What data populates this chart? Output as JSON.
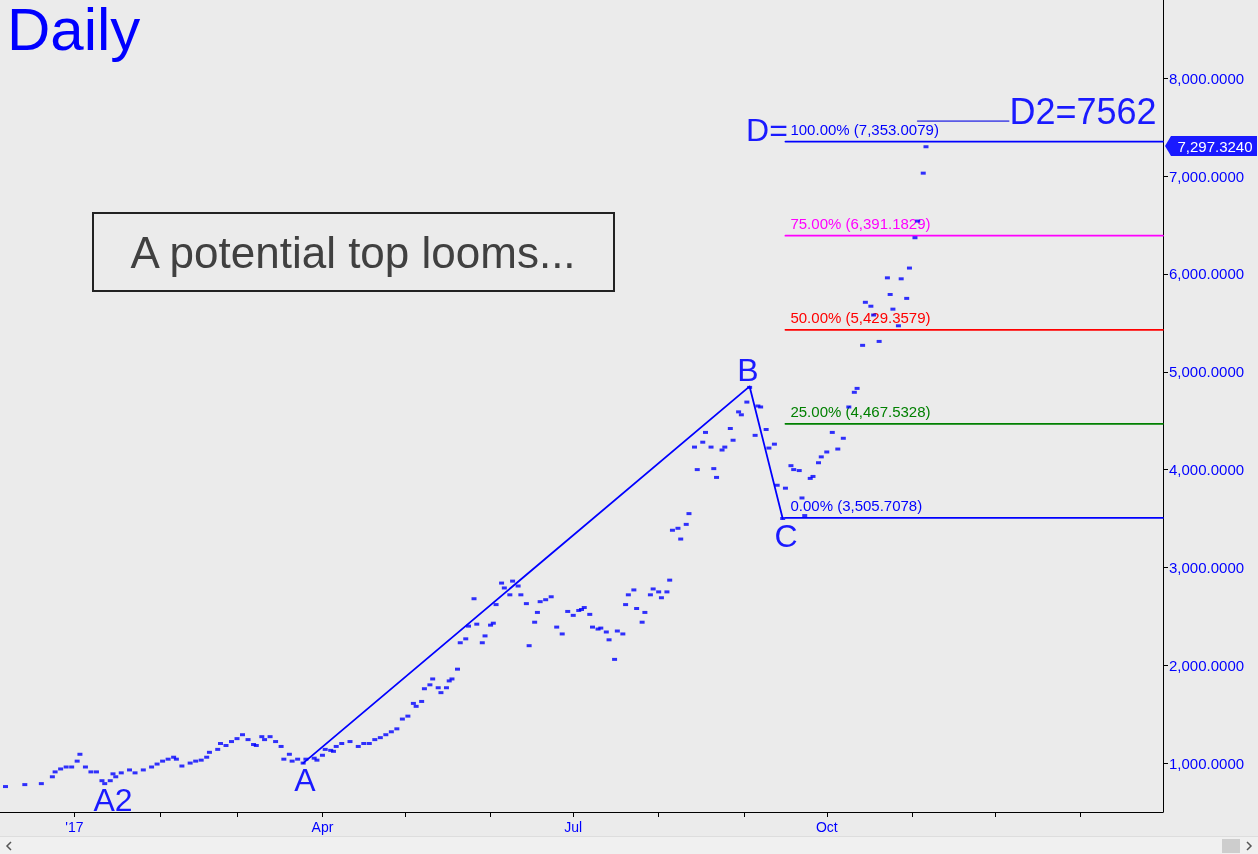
{
  "chart_data": {
    "type": "scatter",
    "title": "Daily",
    "marker": "square",
    "xlim": [
      "2016-12-05",
      "2018-01-31"
    ],
    "xticks": [
      {
        "value": "2017-01-01",
        "label": "'17"
      },
      {
        "value": "2017-02-01",
        "label": null
      },
      {
        "value": "2017-03-01",
        "label": null
      },
      {
        "value": "2017-04-01",
        "label": "Apr"
      },
      {
        "value": "2017-05-01",
        "label": null
      },
      {
        "value": "2017-06-01",
        "label": null
      },
      {
        "value": "2017-07-01",
        "label": "Jul"
      },
      {
        "value": "2017-08-01",
        "label": null
      },
      {
        "value": "2017-09-01",
        "label": null
      },
      {
        "value": "2017-10-01",
        "label": "Oct"
      },
      {
        "value": "2017-11-01",
        "label": null
      },
      {
        "value": "2017-12-01",
        "label": null
      },
      {
        "value": "2018-01-01",
        "label": null
      }
    ],
    "ylim": [
      500,
      8800
    ],
    "yticks": [
      {
        "value": 1000,
        "label": "1,000.0000"
      },
      {
        "value": 2000,
        "label": "2,000.0000"
      },
      {
        "value": 3000,
        "label": "3,000.0000"
      },
      {
        "value": 4000,
        "label": "4,000.0000"
      },
      {
        "value": 5000,
        "label": "5,000.0000"
      },
      {
        "value": 6000,
        "label": "6,000.0000"
      },
      {
        "value": 7000,
        "label": "7,000.0000"
      },
      {
        "value": 8000,
        "label": "8,000.0000"
      }
    ],
    "series": [
      {
        "color": "#0000ff",
        "x": [
          "2016-12-07",
          "2016-12-14",
          "2016-12-20",
          "2016-12-24",
          "2016-12-25",
          "2016-12-27",
          "2016-12-29",
          "2016-12-31",
          "2017-01-02",
          "2017-01-03",
          "2017-01-05",
          "2017-01-07",
          "2017-01-09",
          "2017-01-11",
          "2017-01-12",
          "2017-01-14",
          "2017-01-15",
          "2017-01-16",
          "2017-01-18",
          "2017-01-21",
          "2017-01-23",
          "2017-01-26",
          "2017-01-29",
          "2017-01-31",
          "2017-02-02",
          "2017-02-04",
          "2017-02-06",
          "2017-02-07",
          "2017-02-09",
          "2017-02-12",
          "2017-02-14",
          "2017-02-16",
          "2017-02-18",
          "2017-02-19",
          "2017-02-22",
          "2017-02-23",
          "2017-02-25",
          "2017-02-27",
          "2017-03-01",
          "2017-03-03",
          "2017-03-05",
          "2017-03-07",
          "2017-03-08",
          "2017-03-10",
          "2017-03-11",
          "2017-03-13",
          "2017-03-15",
          "2017-03-17",
          "2017-03-18",
          "2017-03-20",
          "2017-03-21",
          "2017-03-23",
          "2017-03-25",
          "2017-03-26",
          "2017-03-29",
          "2017-03-30",
          "2017-04-01",
          "2017-04-02",
          "2017-04-04",
          "2017-04-05",
          "2017-04-06",
          "2017-04-08",
          "2017-04-11",
          "2017-04-14",
          "2017-04-16",
          "2017-04-18",
          "2017-04-20",
          "2017-04-22",
          "2017-04-24",
          "2017-04-26",
          "2017-04-28",
          "2017-04-30",
          "2017-05-02",
          "2017-05-04",
          "2017-05-05",
          "2017-05-07",
          "2017-05-08",
          "2017-05-10",
          "2017-05-11",
          "2017-05-13",
          "2017-05-14",
          "2017-05-16",
          "2017-05-17",
          "2017-05-18",
          "2017-05-20",
          "2017-05-21",
          "2017-05-23",
          "2017-05-24",
          "2017-05-26",
          "2017-05-27",
          "2017-05-29",
          "2017-05-30",
          "2017-06-01",
          "2017-06-02",
          "2017-06-03",
          "2017-06-05",
          "2017-06-06",
          "2017-06-08",
          "2017-06-09",
          "2017-06-11",
          "2017-06-12",
          "2017-06-14",
          "2017-06-15",
          "2017-06-17",
          "2017-06-18",
          "2017-06-19",
          "2017-06-21",
          "2017-06-23",
          "2017-06-25",
          "2017-06-27",
          "2017-06-29",
          "2017-07-01",
          "2017-07-03",
          "2017-07-04",
          "2017-07-05",
          "2017-07-07",
          "2017-07-08",
          "2017-07-10",
          "2017-07-11",
          "2017-07-13",
          "2017-07-14",
          "2017-07-16",
          "2017-07-17",
          "2017-07-19",
          "2017-07-20",
          "2017-07-21",
          "2017-07-23",
          "2017-07-24",
          "2017-07-26",
          "2017-07-27",
          "2017-07-29",
          "2017-07-30",
          "2017-08-01",
          "2017-08-02",
          "2017-08-04",
          "2017-08-05",
          "2017-08-06",
          "2017-08-08",
          "2017-08-09",
          "2017-08-11",
          "2017-08-12",
          "2017-08-14",
          "2017-08-15",
          "2017-08-17",
          "2017-08-18",
          "2017-08-20",
          "2017-08-21",
          "2017-08-22",
          "2017-08-24",
          "2017-08-25",
          "2017-08-27",
          "2017-08-28",
          "2017-08-30",
          "2017-08-31",
          "2017-09-02",
          "2017-09-03",
          "2017-09-05",
          "2017-09-06",
          "2017-09-07",
          "2017-09-09",
          "2017-09-10",
          "2017-09-12",
          "2017-09-13",
          "2017-09-15",
          "2017-09-16",
          "2017-09-18",
          "2017-09-19",
          "2017-09-21",
          "2017-09-22",
          "2017-09-23",
          "2017-09-25",
          "2017-09-26",
          "2017-09-28",
          "2017-09-29",
          "2017-10-01",
          "2017-10-03",
          "2017-10-05",
          "2017-10-07",
          "2017-10-09",
          "2017-10-11",
          "2017-10-12",
          "2017-10-14",
          "2017-10-15",
          "2017-10-17",
          "2017-10-18",
          "2017-10-20",
          "2017-10-23",
          "2017-10-24",
          "2017-10-25",
          "2017-10-27",
          "2017-10-28",
          "2017-10-30",
          "2017-10-31",
          "2017-11-02",
          "2017-11-03",
          "2017-11-05",
          "2017-11-06"
        ],
        "values": [
          760,
          780,
          790,
          860,
          910,
          940,
          960,
          960,
          1020,
          1090,
          960,
          910,
          910,
          820,
          790,
          820,
          890,
          860,
          900,
          930,
          900,
          930,
          960,
          990,
          1020,
          1040,
          1060,
          1040,
          970,
          1000,
          1020,
          1030,
          1060,
          1110,
          1140,
          1200,
          1180,
          1220,
          1250,
          1290,
          1240,
          1190,
          1180,
          1270,
          1240,
          1270,
          1220,
          1170,
          1040,
          1090,
          1020,
          1040,
          1000,
          1040,
          1050,
          1030,
          1080,
          1140,
          1130,
          1120,
          1170,
          1200,
          1220,
          1170,
          1200,
          1200,
          1240,
          1260,
          1290,
          1320,
          1350,
          1450,
          1480,
          1610,
          1580,
          1630,
          1760,
          1800,
          1860,
          1770,
          1720,
          1770,
          1840,
          1860,
          1960,
          2230,
          2270,
          2400,
          2680,
          2420,
          2230,
          2300,
          2410,
          2430,
          2620,
          2840,
          2790,
          2720,
          2860,
          2810,
          2720,
          2630,
          2200,
          2440,
          2540,
          2650,
          2670,
          2700,
          2390,
          2320,
          2550,
          2510,
          2560,
          2570,
          2590,
          2520,
          2390,
          2370,
          2380,
          2340,
          2260,
          2060,
          2350,
          2320,
          2620,
          2720,
          2770,
          2580,
          2440,
          2540,
          2720,
          2780,
          2750,
          2690,
          2750,
          2870,
          3380,
          3400,
          3290,
          3440,
          3550,
          4230,
          4000,
          4280,
          4380,
          4230,
          4010,
          3920,
          4200,
          4230,
          4420,
          4300,
          4590,
          4560,
          4690,
          4840,
          4350,
          4650,
          4640,
          4410,
          4220,
          4260,
          3840,
          3500,
          3810,
          4040,
          4000,
          3990,
          3710,
          3530,
          3910,
          3930,
          4070,
          4130,
          4180,
          4380,
          4210,
          4320,
          4640,
          4790,
          4830,
          5270,
          5710,
          5670,
          5580,
          5310,
          5960,
          5790,
          5640,
          5470,
          5950,
          5750,
          6060,
          6370,
          6540,
          7030,
          7300
        ]
      },
      {
        "type": "line",
        "color": "#0000ff",
        "x": [
          "2017-03-25",
          "2017-09-03",
          "2017-09-15"
        ],
        "values": [
          1000,
          4850,
          3500
        ],
        "marker": "none"
      },
      {
        "type": "line",
        "name": "100.00% (7,353.0079)",
        "color": "#0000ff",
        "x": [
          "2017-09-16",
          "2018-01-31"
        ],
        "values": [
          7353,
          7353
        ],
        "marker": "none"
      },
      {
        "type": "line",
        "name": "75.00% (6,391.1829)",
        "color": "#ff00ff",
        "x": [
          "2017-09-16",
          "2018-01-31"
        ],
        "values": [
          6391,
          6391
        ],
        "marker": "none"
      },
      {
        "type": "line",
        "name": "50.00% (5,429.3579)",
        "color": "#ff0000",
        "x": [
          "2017-09-16",
          "2018-01-31"
        ],
        "values": [
          5429,
          5429
        ],
        "marker": "none"
      },
      {
        "type": "line",
        "name": "25.00% (4,467.5328)",
        "color": "#008000",
        "x": [
          "2017-09-16",
          "2018-01-31"
        ],
        "values": [
          4468,
          4468
        ],
        "marker": "none"
      },
      {
        "type": "line",
        "name": "0.00% (3,505.7078)",
        "color": "#0000ff",
        "x": [
          "2017-09-16",
          "2018-01-31"
        ],
        "values": [
          3506,
          3506
        ],
        "marker": "none"
      },
      {
        "type": "line",
        "color": "#5a5ae6",
        "x": [
          "2017-11-03",
          "2017-12-06"
        ],
        "values": [
          7562,
          7562
        ],
        "marker": "none"
      }
    ],
    "annotations": [
      "A potential top looms...",
      "D2=7562",
      "D=",
      "A2",
      "A",
      "B",
      "C",
      "7,297.3240"
    ]
  }
}
